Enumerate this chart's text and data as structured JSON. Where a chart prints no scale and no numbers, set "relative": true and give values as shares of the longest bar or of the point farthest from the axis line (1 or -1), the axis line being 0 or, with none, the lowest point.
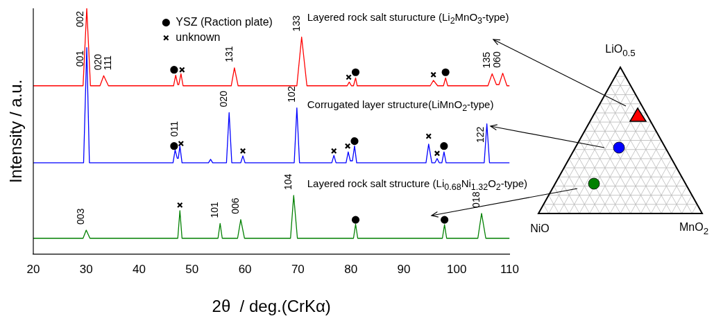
{
  "chart_data": {
    "type": "line",
    "xlabel": "2θ  / deg.(CrKα)",
    "ylabel": "Intensity / a.u.",
    "relative": true,
    "tick_labels": "x",
    "legend": "top",
    "xlim": [
      20,
      110
    ],
    "xticks": [
      20,
      30,
      40,
      50,
      60,
      70,
      80,
      90,
      100,
      110
    ],
    "series": [
      {
        "name": "Layered rock salt sturucture (Li$_{2}$MnO$_{3}$-type)",
        "color": "#ff0000",
        "x": [
          20,
          29.4,
          30.1,
          30.8,
          32.6,
          33.3,
          34.2,
          46.5,
          46.9,
          47.3,
          47.5,
          47.9,
          48.3,
          57.4,
          58.0,
          58.7,
          69.8,
          70.7,
          71.7,
          79.3,
          79.7,
          80.1,
          80.5,
          80.9,
          81.2,
          95.0,
          95.6,
          96.4,
          97.5,
          97.9,
          98.3,
          105.9,
          106.7,
          107.5,
          108.0,
          108.7,
          109.5,
          110
        ],
        "values": [
          0.685,
          0.685,
          1.0,
          0.685,
          0.685,
          0.726,
          0.685,
          0.685,
          0.728,
          0.69,
          0.69,
          0.734,
          0.685,
          0.685,
          0.758,
          0.685,
          0.685,
          0.883,
          0.685,
          0.685,
          0.7,
          0.685,
          0.685,
          0.717,
          0.685,
          0.685,
          0.707,
          0.685,
          0.685,
          0.717,
          0.685,
          0.685,
          0.734,
          0.69,
          0.69,
          0.736,
          0.685,
          0.685
        ]
      },
      {
        "name": "Corrugated layer structure(LiMnO$_{2}$-type)",
        "color": "#0000ff",
        "x": [
          20,
          29.5,
          30.1,
          30.6,
          46.4,
          46.8,
          47.2,
          47.4,
          47.7,
          48.1,
          53.1,
          53.5,
          53.9,
          56.5,
          57.0,
          57.5,
          59.2,
          59.6,
          60.0,
          69.3,
          69.8,
          70.3,
          76.4,
          76.8,
          77.2,
          79.1,
          79.5,
          79.9,
          80.3,
          80.7,
          81.1,
          94.2,
          94.7,
          95.3,
          95.9,
          96.3,
          96.7,
          97.2,
          97.6,
          98.0,
          105.2,
          105.7,
          106.2,
          110
        ],
        "values": [
          0.372,
          0.372,
          0.84,
          0.372,
          0.372,
          0.424,
          0.39,
          0.39,
          0.44,
          0.372,
          0.372,
          0.386,
          0.372,
          0.372,
          0.576,
          0.372,
          0.372,
          0.4,
          0.372,
          0.372,
          0.595,
          0.372,
          0.372,
          0.402,
          0.372,
          0.372,
          0.416,
          0.38,
          0.38,
          0.44,
          0.372,
          0.372,
          0.448,
          0.372,
          0.372,
          0.389,
          0.372,
          0.372,
          0.416,
          0.372,
          0.372,
          0.53,
          0.372,
          0.372
        ]
      },
      {
        "name": "Layered rock salt structure (Li$_{0.68}$Ni$_{1.32}$O$_{2}$-type)",
        "color": "#008000",
        "x": [
          20,
          29.4,
          30.0,
          30.7,
          47.3,
          47.7,
          48.1,
          54.9,
          55.3,
          55.7,
          58.6,
          59.2,
          59.9,
          68.6,
          69.2,
          69.9,
          80.5,
          80.9,
          81.3,
          97.3,
          97.7,
          98.1,
          104.0,
          104.7,
          105.5,
          110
        ],
        "values": [
          0.065,
          0.065,
          0.098,
          0.065,
          0.065,
          0.177,
          0.065,
          0.065,
          0.125,
          0.065,
          0.065,
          0.141,
          0.065,
          0.065,
          0.239,
          0.065,
          0.065,
          0.122,
          0.065,
          0.065,
          0.12,
          0.065,
          0.065,
          0.166,
          0.065,
          0.065
        ]
      },
      {
        "name": "YSZ (Raction plate)",
        "type": "scatter",
        "marker": "circle",
        "color": "#000000",
        "x": [
          46.6,
          80.9,
          97.9,
          46.6,
          80.7,
          97.6,
          80.9,
          97.7
        ],
        "values": [
          0.75,
          0.74,
          0.74,
          0.44,
          0.46,
          0.44,
          0.14,
          0.14
        ]
      },
      {
        "name": "unknown",
        "type": "scatter",
        "marker": "cross",
        "color": "#000000",
        "x": [
          48.1,
          79.6,
          95.6,
          47.9,
          59.6,
          76.8,
          79.4,
          94.7,
          96.3,
          47.7
        ],
        "values": [
          0.75,
          0.72,
          0.73,
          0.45,
          0.42,
          0.42,
          0.44,
          0.48,
          0.41,
          0.2
        ]
      }
    ],
    "annotations": [
      "LiO$_{0.5}$",
      "NiO",
      "MnO$_{2}$",
      {
        "text": "002",
        "x": 30.1,
        "y": 1.0
      },
      {
        "text": "020",
        "x": 33.3,
        "y": 0.726
      },
      {
        "text": "111",
        "x": 33.3,
        "y": 0.726
      },
      {
        "text": "131",
        "x": 58.0,
        "y": 0.758
      },
      {
        "text": "133",
        "x": 70.7,
        "y": 0.883
      },
      {
        "text": "135",
        "x": 106.7,
        "y": 0.734
      },
      {
        "text": "060",
        "x": 108.7,
        "y": 0.736
      },
      {
        "text": "001",
        "x": 30.1,
        "y": 0.84
      },
      {
        "text": "011",
        "x": 47.7,
        "y": 0.44
      },
      {
        "text": "020",
        "x": 57.0,
        "y": 0.576
      },
      {
        "text": "102",
        "x": 69.8,
        "y": 0.595
      },
      {
        "text": "122",
        "x": 105.7,
        "y": 0.53
      },
      {
        "text": "003",
        "x": 30.0,
        "y": 0.098
      },
      {
        "text": "101",
        "x": 55.3,
        "y": 0.125
      },
      {
        "text": "006",
        "x": 59.2,
        "y": 0.141
      },
      {
        "text": "104",
        "x": 69.2,
        "y": 0.239
      },
      {
        "text": "018",
        "x": 104.7,
        "y": 0.166
      }
    ]
  }
}
